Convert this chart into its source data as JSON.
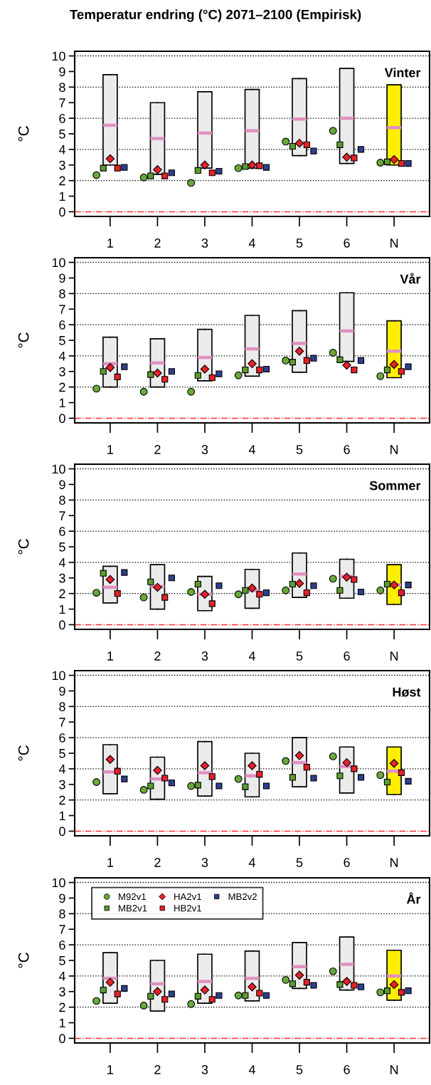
{
  "chart_data": [
    {
      "type": "box",
      "title": "Temperatur endring (°C) 2071–2100 (Empirisk)",
      "ylabel": "°C",
      "annotations": [
        "Vinter"
      ],
      "categories": [
        "1",
        "2",
        "3",
        "4",
        "5",
        "6",
        "N"
      ],
      "ylim": [
        -0.3,
        10.3
      ],
      "yticks": [
        0,
        1,
        2,
        3,
        4,
        5,
        6,
        7,
        8,
        9,
        10
      ],
      "colors": [
        "#ebebeb",
        "#ebebeb",
        "#ebebeb",
        "#ebebeb",
        "#ebebeb",
        "#ebebeb",
        "#ffee00"
      ],
      "boxes": [
        {
          "low": 3.0,
          "q1": 3.0,
          "median": 5.55,
          "q3": 8.8,
          "high": 8.8
        },
        {
          "low": 2.4,
          "q1": 2.4,
          "median": 4.7,
          "q3": 7.0,
          "high": 7.0
        },
        {
          "low": 2.8,
          "q1": 2.8,
          "median": 5.05,
          "q3": 7.7,
          "high": 7.7
        },
        {
          "low": 2.8,
          "q1": 2.8,
          "median": 5.2,
          "q3": 7.85,
          "high": 7.85
        },
        {
          "low": 3.6,
          "q1": 3.6,
          "median": 5.95,
          "q3": 8.55,
          "high": 8.55
        },
        {
          "low": 3.1,
          "q1": 3.1,
          "median": 6.0,
          "q3": 9.2,
          "high": 9.2
        },
        {
          "low": 3.0,
          "q1": 3.0,
          "median": 5.4,
          "q3": 8.15,
          "high": 8.15
        }
      ],
      "series": [
        {
          "type": "scatter",
          "marker": "circle",
          "color": "#6aa83a",
          "x": [
            "1",
            "2",
            "3",
            "4",
            "5",
            "6",
            "N"
          ],
          "values": [
            2.35,
            2.2,
            1.85,
            2.8,
            4.5,
            5.2,
            3.15
          ]
        },
        {
          "type": "scatter",
          "marker": "square",
          "color": "#5a9e2e",
          "x": [
            "1",
            "2",
            "3",
            "4",
            "5",
            "6",
            "N"
          ],
          "values": [
            2.8,
            2.3,
            2.65,
            2.9,
            4.2,
            4.3,
            3.2
          ]
        },
        {
          "type": "scatter",
          "marker": "diamond",
          "color": "#e8202a",
          "x": [
            "1",
            "2",
            "3",
            "4",
            "5",
            "6",
            "N"
          ],
          "values": [
            3.4,
            2.7,
            3.0,
            3.0,
            4.4,
            3.5,
            3.35
          ]
        },
        {
          "type": "scatter",
          "marker": "square",
          "color": "#e8202a",
          "x": [
            "1",
            "2",
            "3",
            "4",
            "5",
            "6",
            "N"
          ],
          "values": [
            2.8,
            2.3,
            2.5,
            2.95,
            4.3,
            3.45,
            3.1
          ]
        },
        {
          "type": "scatter",
          "marker": "square",
          "color": "#2d3f8f",
          "x": [
            "1",
            "2",
            "3",
            "4",
            "5",
            "6",
            "N"
          ],
          "values": [
            2.85,
            2.5,
            2.6,
            2.85,
            3.9,
            4.0,
            3.1
          ]
        }
      ],
      "ref_lines": [
        {
          "axis": "y",
          "value": 0,
          "color": "#ff3030",
          "line_style": "dashdot"
        },
        {
          "axis": "y",
          "value": 2,
          "color": "#000000",
          "line_style": "dotted"
        },
        {
          "axis": "y",
          "value": 4,
          "color": "#000000",
          "line_style": "dotted"
        },
        {
          "axis": "y",
          "value": 6,
          "color": "#000000",
          "line_style": "dotted"
        },
        {
          "axis": "y",
          "value": 8,
          "color": "#000000",
          "line_style": "dotted"
        },
        {
          "axis": "y",
          "value": 10,
          "color": "#000000",
          "line_style": "dotted"
        }
      ]
    },
    {
      "type": "box",
      "ylabel": "°C",
      "annotations": [
        "Vår"
      ],
      "categories": [
        "1",
        "2",
        "3",
        "4",
        "5",
        "6",
        "N"
      ],
      "ylim": [
        -0.3,
        10.3
      ],
      "yticks": [
        0,
        1,
        2,
        3,
        4,
        5,
        6,
        7,
        8,
        9,
        10
      ],
      "colors": [
        "#ebebeb",
        "#ebebeb",
        "#ebebeb",
        "#ebebeb",
        "#ebebeb",
        "#ebebeb",
        "#ffee00"
      ],
      "boxes": [
        {
          "low": 2.0,
          "q1": 2.0,
          "median": 3.5,
          "q3": 5.2,
          "high": 5.2
        },
        {
          "low": 2.0,
          "q1": 2.0,
          "median": 3.55,
          "q3": 5.1,
          "high": 5.1
        },
        {
          "low": 2.4,
          "q1": 2.4,
          "median": 3.9,
          "q3": 5.7,
          "high": 5.7
        },
        {
          "low": 2.7,
          "q1": 2.7,
          "median": 4.45,
          "q3": 6.6,
          "high": 6.6
        },
        {
          "low": 2.95,
          "q1": 2.95,
          "median": 4.8,
          "q3": 6.9,
          "high": 6.9
        },
        {
          "low": 3.65,
          "q1": 3.65,
          "median": 5.6,
          "q3": 8.05,
          "high": 8.05
        },
        {
          "low": 2.6,
          "q1": 2.6,
          "median": 4.3,
          "q3": 6.25,
          "high": 6.25
        }
      ],
      "series": [
        {
          "type": "scatter",
          "marker": "circle",
          "color": "#6aa83a",
          "x": [
            "1",
            "2",
            "3",
            "4",
            "5",
            "6",
            "N"
          ],
          "values": [
            1.9,
            1.7,
            1.7,
            2.75,
            3.7,
            4.2,
            2.7
          ]
        },
        {
          "type": "scatter",
          "marker": "square",
          "color": "#5a9e2e",
          "x": [
            "1",
            "2",
            "3",
            "4",
            "5",
            "6",
            "N"
          ],
          "values": [
            3.0,
            2.8,
            2.75,
            3.1,
            3.6,
            3.75,
            3.1
          ]
        },
        {
          "type": "scatter",
          "marker": "diamond",
          "color": "#e8202a",
          "x": [
            "1",
            "2",
            "3",
            "4",
            "5",
            "6",
            "N"
          ],
          "values": [
            3.25,
            2.9,
            3.15,
            3.5,
            4.3,
            3.4,
            3.45
          ]
        },
        {
          "type": "scatter",
          "marker": "square",
          "color": "#e8202a",
          "x": [
            "1",
            "2",
            "3",
            "4",
            "5",
            "6",
            "N"
          ],
          "values": [
            2.65,
            2.5,
            2.6,
            3.1,
            3.7,
            3.1,
            3.0
          ]
        },
        {
          "type": "scatter",
          "marker": "square",
          "color": "#2d3f8f",
          "x": [
            "1",
            "2",
            "3",
            "4",
            "5",
            "6",
            "N"
          ],
          "values": [
            3.3,
            3.0,
            2.85,
            3.15,
            3.85,
            3.7,
            3.3
          ]
        }
      ],
      "ref_lines": [
        {
          "axis": "y",
          "value": 0,
          "color": "#ff3030",
          "line_style": "dashdot"
        },
        {
          "axis": "y",
          "value": 2,
          "color": "#000000",
          "line_style": "dotted"
        },
        {
          "axis": "y",
          "value": 4,
          "color": "#000000",
          "line_style": "dotted"
        },
        {
          "axis": "y",
          "value": 6,
          "color": "#000000",
          "line_style": "dotted"
        },
        {
          "axis": "y",
          "value": 8,
          "color": "#000000",
          "line_style": "dotted"
        },
        {
          "axis": "y",
          "value": 10,
          "color": "#000000",
          "line_style": "dotted"
        }
      ]
    },
    {
      "type": "box",
      "ylabel": "°C",
      "annotations": [
        "Sommer"
      ],
      "categories": [
        "1",
        "2",
        "3",
        "4",
        "5",
        "6",
        "N"
      ],
      "ylim": [
        -0.3,
        10.3
      ],
      "yticks": [
        0,
        1,
        2,
        3,
        4,
        5,
        6,
        7,
        8,
        9,
        10
      ],
      "colors": [
        "#ebebeb",
        "#ebebeb",
        "#ebebeb",
        "#ebebeb",
        "#ebebeb",
        "#ebebeb",
        "#ffee00"
      ],
      "boxes": [
        {
          "low": 1.4,
          "q1": 1.4,
          "median": 2.4,
          "q3": 3.75,
          "high": 3.75
        },
        {
          "low": 1.0,
          "q1": 1.0,
          "median": 2.45,
          "q3": 3.85,
          "high": 3.85
        },
        {
          "low": 0.9,
          "q1": 0.9,
          "median": 1.95,
          "q3": 3.1,
          "high": 3.1
        },
        {
          "low": 1.05,
          "q1": 1.05,
          "median": 2.2,
          "q3": 3.55,
          "high": 3.55
        },
        {
          "low": 1.75,
          "q1": 1.75,
          "median": 3.25,
          "q3": 4.6,
          "high": 4.6
        },
        {
          "low": 1.7,
          "q1": 1.7,
          "median": 3.1,
          "q3": 4.2,
          "high": 4.2
        },
        {
          "low": 1.3,
          "q1": 1.3,
          "median": 2.55,
          "q3": 3.85,
          "high": 3.85
        }
      ],
      "series": [
        {
          "type": "scatter",
          "marker": "circle",
          "color": "#6aa83a",
          "x": [
            "1",
            "2",
            "3",
            "4",
            "5",
            "6",
            "N"
          ],
          "values": [
            2.05,
            1.75,
            2.1,
            1.95,
            2.2,
            2.95,
            2.2
          ]
        },
        {
          "type": "scatter",
          "marker": "square",
          "color": "#5a9e2e",
          "x": [
            "1",
            "2",
            "3",
            "4",
            "5",
            "6",
            "N"
          ],
          "values": [
            3.3,
            2.75,
            2.6,
            2.2,
            2.6,
            2.2,
            2.6
          ]
        },
        {
          "type": "scatter",
          "marker": "diamond",
          "color": "#e8202a",
          "x": [
            "1",
            "2",
            "3",
            "4",
            "5",
            "6",
            "N"
          ],
          "values": [
            2.9,
            2.4,
            1.95,
            2.35,
            2.65,
            3.05,
            2.55
          ]
        },
        {
          "type": "scatter",
          "marker": "square",
          "color": "#e8202a",
          "x": [
            "1",
            "2",
            "3",
            "4",
            "5",
            "6",
            "N"
          ],
          "values": [
            2.0,
            1.75,
            1.35,
            1.95,
            2.05,
            2.9,
            2.05
          ]
        },
        {
          "type": "scatter",
          "marker": "square",
          "color": "#2d3f8f",
          "x": [
            "1",
            "2",
            "3",
            "4",
            "5",
            "6",
            "N"
          ],
          "values": [
            3.35,
            3.0,
            2.5,
            2.05,
            2.5,
            2.1,
            2.55
          ]
        }
      ],
      "ref_lines": [
        {
          "axis": "y",
          "value": 0,
          "color": "#ff3030",
          "line_style": "dashdot"
        },
        {
          "axis": "y",
          "value": 2,
          "color": "#000000",
          "line_style": "dotted"
        },
        {
          "axis": "y",
          "value": 4,
          "color": "#000000",
          "line_style": "dotted"
        },
        {
          "axis": "y",
          "value": 6,
          "color": "#000000",
          "line_style": "dotted"
        },
        {
          "axis": "y",
          "value": 8,
          "color": "#000000",
          "line_style": "dotted"
        },
        {
          "axis": "y",
          "value": 10,
          "color": "#000000",
          "line_style": "dotted"
        }
      ]
    },
    {
      "type": "box",
      "ylabel": "°C",
      "annotations": [
        "Høst"
      ],
      "categories": [
        "1",
        "2",
        "3",
        "4",
        "5",
        "6",
        "N"
      ],
      "ylim": [
        -0.3,
        10.3
      ],
      "yticks": [
        0,
        1,
        2,
        3,
        4,
        5,
        6,
        7,
        8,
        9,
        10
      ],
      "colors": [
        "#ebebeb",
        "#ebebeb",
        "#ebebeb",
        "#ebebeb",
        "#ebebeb",
        "#ebebeb",
        "#ffee00"
      ],
      "boxes": [
        {
          "low": 2.4,
          "q1": 2.4,
          "median": 3.8,
          "q3": 5.55,
          "high": 5.55
        },
        {
          "low": 2.05,
          "q1": 2.05,
          "median": 3.35,
          "q3": 4.75,
          "high": 4.75
        },
        {
          "low": 2.25,
          "q1": 2.25,
          "median": 3.75,
          "q3": 5.75,
          "high": 5.75
        },
        {
          "low": 2.2,
          "q1": 2.2,
          "median": 3.55,
          "q3": 5.0,
          "high": 5.0
        },
        {
          "low": 2.85,
          "q1": 2.85,
          "median": 4.4,
          "q3": 6.0,
          "high": 6.0
        },
        {
          "low": 2.45,
          "q1": 2.45,
          "median": 4.15,
          "q3": 5.4,
          "high": 5.4
        },
        {
          "low": 2.35,
          "q1": 2.35,
          "median": 3.85,
          "q3": 5.4,
          "high": 5.4
        }
      ],
      "series": [
        {
          "type": "scatter",
          "marker": "circle",
          "color": "#6aa83a",
          "x": [
            "1",
            "2",
            "3",
            "4",
            "5",
            "6",
            "N"
          ],
          "values": [
            3.15,
            2.65,
            2.9,
            3.35,
            4.5,
            4.8,
            3.6
          ]
        },
        {
          "type": "scatter",
          "marker": "square",
          "color": "#5a9e2e",
          "x": [
            "1",
            "2",
            "3",
            "4",
            "5",
            "6",
            "N"
          ],
          "values": [
            null,
            2.9,
            2.95,
            2.85,
            3.45,
            3.55,
            3.15
          ]
        },
        {
          "type": "scatter",
          "marker": "diamond",
          "color": "#e8202a",
          "x": [
            "1",
            "2",
            "3",
            "4",
            "5",
            "6",
            "N"
          ],
          "values": [
            4.6,
            3.9,
            4.2,
            4.2,
            4.85,
            4.4,
            4.35
          ]
        },
        {
          "type": "scatter",
          "marker": "square",
          "color": "#e8202a",
          "x": [
            "1",
            "2",
            "3",
            "4",
            "5",
            "6",
            "N"
          ],
          "values": [
            3.85,
            3.4,
            3.5,
            3.65,
            4.1,
            4.0,
            3.75
          ]
        },
        {
          "type": "scatter",
          "marker": "square",
          "color": "#2d3f8f",
          "x": [
            "1",
            "2",
            "3",
            "4",
            "5",
            "6",
            "N"
          ],
          "values": [
            3.35,
            3.1,
            2.9,
            2.9,
            3.4,
            3.45,
            3.2
          ]
        }
      ],
      "ref_lines": [
        {
          "axis": "y",
          "value": 0,
          "color": "#ff3030",
          "line_style": "dashdot"
        },
        {
          "axis": "y",
          "value": 2,
          "color": "#000000",
          "line_style": "dotted"
        },
        {
          "axis": "y",
          "value": 4,
          "color": "#000000",
          "line_style": "dotted"
        },
        {
          "axis": "y",
          "value": 6,
          "color": "#000000",
          "line_style": "dotted"
        },
        {
          "axis": "y",
          "value": 8,
          "color": "#000000",
          "line_style": "dotted"
        },
        {
          "axis": "y",
          "value": 10,
          "color": "#000000",
          "line_style": "dotted"
        }
      ]
    },
    {
      "type": "box",
      "ylabel": "°C",
      "annotations": [
        "År"
      ],
      "categories": [
        "1",
        "2",
        "3",
        "4",
        "5",
        "6",
        "N"
      ],
      "ylim": [
        -0.3,
        10.3
      ],
      "yticks": [
        0,
        1,
        2,
        3,
        4,
        5,
        6,
        7,
        8,
        9,
        10
      ],
      "legend": "top left",
      "colors": [
        "#ebebeb",
        "#ebebeb",
        "#ebebeb",
        "#ebebeb",
        "#ebebeb",
        "#ebebeb",
        "#ffee00"
      ],
      "boxes": [
        {
          "low": 2.25,
          "q1": 2.25,
          "median": 3.85,
          "q3": 5.5,
          "high": 5.5
        },
        {
          "low": 1.75,
          "q1": 1.75,
          "median": 3.5,
          "q3": 5.0,
          "high": 5.0
        },
        {
          "low": 2.25,
          "q1": 2.25,
          "median": 3.65,
          "q3": 5.4,
          "high": 5.4
        },
        {
          "low": 2.4,
          "q1": 2.4,
          "median": 3.85,
          "q3": 5.6,
          "high": 5.6
        },
        {
          "low": 3.2,
          "q1": 3.2,
          "median": 4.6,
          "q3": 6.15,
          "high": 6.15
        },
        {
          "low": 3.1,
          "q1": 3.1,
          "median": 4.75,
          "q3": 6.5,
          "high": 6.5
        },
        {
          "low": 2.45,
          "q1": 2.45,
          "median": 4.0,
          "q3": 5.65,
          "high": 5.65
        }
      ],
      "series": [
        {
          "type": "scatter",
          "name": "M92v1",
          "marker": "circle",
          "color": "#6aa83a",
          "x": [
            "1",
            "2",
            "3",
            "4",
            "5",
            "6",
            "N"
          ],
          "values": [
            2.4,
            2.1,
            2.2,
            2.75,
            3.75,
            4.3,
            2.95
          ]
        },
        {
          "type": "scatter",
          "name": "MB2v1",
          "marker": "square",
          "color": "#5a9e2e",
          "x": [
            "1",
            "2",
            "3",
            "4",
            "5",
            "6",
            "N"
          ],
          "values": [
            3.1,
            2.7,
            2.7,
            2.75,
            3.5,
            3.45,
            3.05
          ]
        },
        {
          "type": "scatter",
          "name": "HA2v1",
          "marker": "diamond",
          "color": "#e8202a",
          "x": [
            "1",
            "2",
            "3",
            "4",
            "5",
            "6",
            "N"
          ],
          "values": [
            3.6,
            3.0,
            3.1,
            3.3,
            4.05,
            3.65,
            3.45
          ]
        },
        {
          "type": "scatter",
          "name": "HB2v1",
          "marker": "square",
          "color": "#e8202a",
          "x": [
            "1",
            "2",
            "3",
            "4",
            "5",
            "6",
            "N"
          ],
          "values": [
            2.85,
            2.5,
            2.5,
            2.9,
            3.6,
            3.4,
            2.95
          ]
        },
        {
          "type": "scatter",
          "name": "MB2v2",
          "marker": "square",
          "color": "#2d3f8f",
          "x": [
            "1",
            "2",
            "3",
            "4",
            "5",
            "6",
            "N"
          ],
          "values": [
            3.2,
            2.85,
            2.75,
            2.75,
            3.4,
            3.3,
            3.05
          ]
        }
      ],
      "ref_lines": [
        {
          "axis": "y",
          "value": 0,
          "color": "#ff3030",
          "line_style": "dashdot"
        },
        {
          "axis": "y",
          "value": 2,
          "color": "#000000",
          "line_style": "dotted"
        },
        {
          "axis": "y",
          "value": 4,
          "color": "#000000",
          "line_style": "dotted"
        },
        {
          "axis": "y",
          "value": 6,
          "color": "#000000",
          "line_style": "dotted"
        },
        {
          "axis": "y",
          "value": 8,
          "color": "#000000",
          "line_style": "dotted"
        },
        {
          "axis": "y",
          "value": 10,
          "color": "#000000",
          "line_style": "dotted"
        }
      ]
    }
  ]
}
